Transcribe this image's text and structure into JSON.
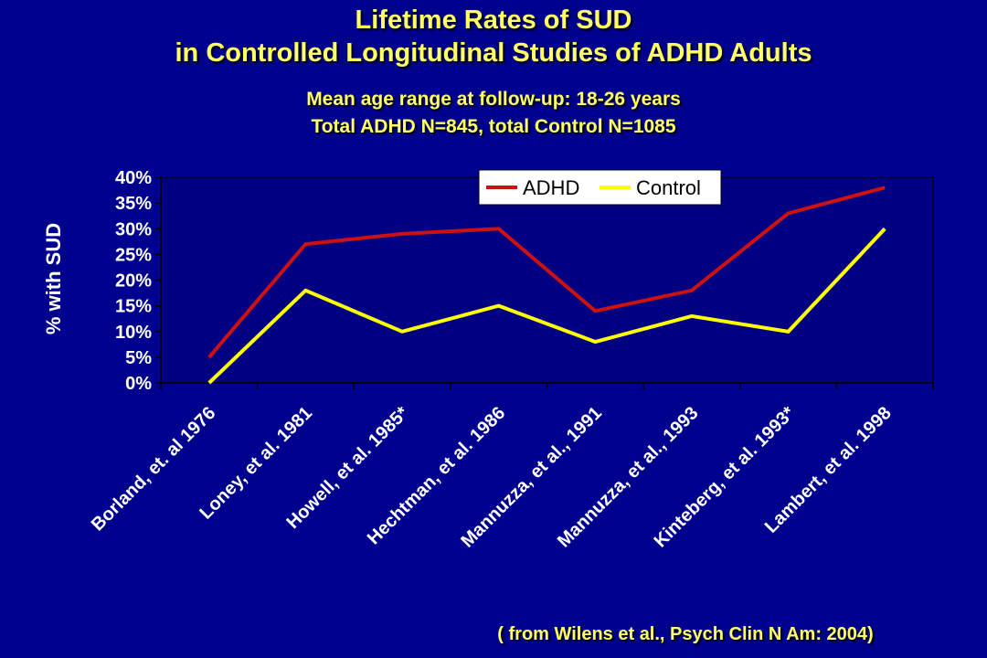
{
  "title_line1": "Lifetime Rates of SUD",
  "title_line2": "in Controlled Longitudinal Studies of ADHD Adults",
  "subtitle_line1": "Mean age range at follow-up: 18-26 years",
  "subtitle_line2": "Total ADHD N=845, total Control N=1085",
  "source": "( from Wilens et al., Psych Clin N Am: 2004)",
  "colors": {
    "background": "#00008f",
    "text": "#ffff66",
    "plot_bg": "#000080",
    "adhd": "#cc1111",
    "control": "#ffff00"
  },
  "chart_data": {
    "type": "line",
    "title": "",
    "xlabel": "",
    "ylabel": "% with SUD",
    "ylim": [
      0,
      40
    ],
    "yticks": [
      0,
      5,
      10,
      15,
      20,
      25,
      30,
      35,
      40
    ],
    "ytick_labels": [
      "0%",
      "5%",
      "10%",
      "15%",
      "20%",
      "25%",
      "30%",
      "35%",
      "40%"
    ],
    "grid": false,
    "legend_position": "top-right",
    "categories": [
      "Borland, et. al 1976",
      "Loney, et al. 1981",
      "Howell, et al. 1985*",
      "Hechtman, et al. 1986",
      "Mannuzza, et al., 1991",
      "Mannuzza, et al., 1993",
      "Kinteberg, et al. 1993*",
      "Lambert, et al. 1998"
    ],
    "series": [
      {
        "name": "ADHD",
        "color": "#cc1111",
        "values": [
          5,
          27,
          29,
          30,
          14,
          18,
          33,
          38
        ]
      },
      {
        "name": "Control",
        "color": "#ffff00",
        "values": [
          0,
          18,
          10,
          15,
          8,
          13,
          10,
          30
        ]
      }
    ]
  }
}
